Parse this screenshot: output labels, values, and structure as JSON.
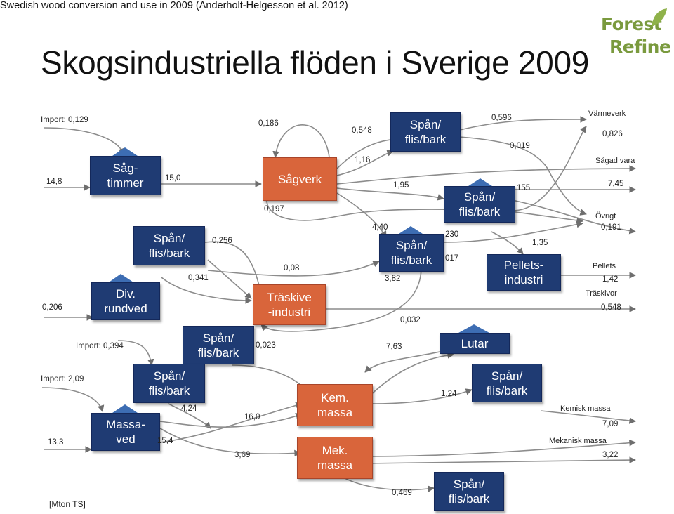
{
  "header": {
    "subtitle": "Swedish wood conversion and use in 2009 (Anderholt-Helgesson et al. 2012)",
    "title": "Skogsindustriella flöden i Sverige 2009",
    "logo_line1": "Forest",
    "logo_line2": "Refine"
  },
  "nodes": {
    "sagtimmer": "Såg-\ntimmer",
    "div_rundved": "Div.\nrundved",
    "massaved": "Massa-\nved",
    "sagverk": "Sågverk",
    "traskive": "Träskive\n-industri",
    "kem_massa": "Kem.\nmassa",
    "mek_massa": "Mek.\nmassa",
    "pellets_industri": "Pellets-\nindustri",
    "lutar": "Lutar",
    "span_1": "Spån/\nflis/bark",
    "span_2": "Spån/\nflis/bark",
    "span_3": "Spån/\nflis/bark",
    "span_4": "Spån/\nflis/bark",
    "span_5": "Spån/\nflis/bark",
    "span_6": "Spån/\nflis/bark",
    "span_7": "Spån/\nflis/bark",
    "span_8": "Spån/\nflis/bark"
  },
  "flows": {
    "import_1": "Import: 0,129",
    "v_14_8": "14,8",
    "v_15_0": "15,0",
    "v_0_256": "0,256",
    "v_0_341": "0,341",
    "v_0_206": "0,206",
    "import_2": "Import: 0,394",
    "import_3": "Import: 2,09",
    "v_4_24": "4,24",
    "v_13_3": "13,3",
    "v_15_4": "15,4",
    "v_16_0": "16,0",
    "v_3_69": "3,69",
    "v_0_023": "0,023",
    "v_0_08": "0,08",
    "v_0_186": "0,186",
    "v_0_197": "0,197",
    "v_0_548a": "0,548",
    "v_1_16": "1,16",
    "v_1_95": "1,95",
    "v_4_40": "4,40",
    "v_3_82": "3,82",
    "v_0_032": "0,032",
    "v_7_63": "7,63",
    "v_0_596": "0,596",
    "v_0_019": "0,019",
    "v_155": "155",
    "v_230": "230",
    "v_017": "017",
    "v_1_35": "1,35",
    "v_1_24": "1,24",
    "v_0_469": "0,469"
  },
  "outputs": {
    "varmeverk": "Värmeverk",
    "v_0_826": "0,826",
    "sagad_vara": "Sågad vara",
    "v_7_45": "7,45",
    "ovrigt": "Övrigt",
    "v_0_191": "0,191",
    "pellets": "Pellets",
    "v_1_42": "1,42",
    "traskivor": "Träskivor",
    "v_0_548b": "0,548",
    "kemisk_massa": "Kemisk massa",
    "v_7_09": "7,09",
    "mekanisk_massa": "Mekanisk massa",
    "v_3_22": "3,22"
  },
  "unit": "[Mton TS]",
  "colors": {
    "node_blue": "#1f3b73",
    "node_orange": "#d9653b",
    "arrow_gray": "#8c8c8c",
    "logo_green": "#7a9a3e"
  }
}
